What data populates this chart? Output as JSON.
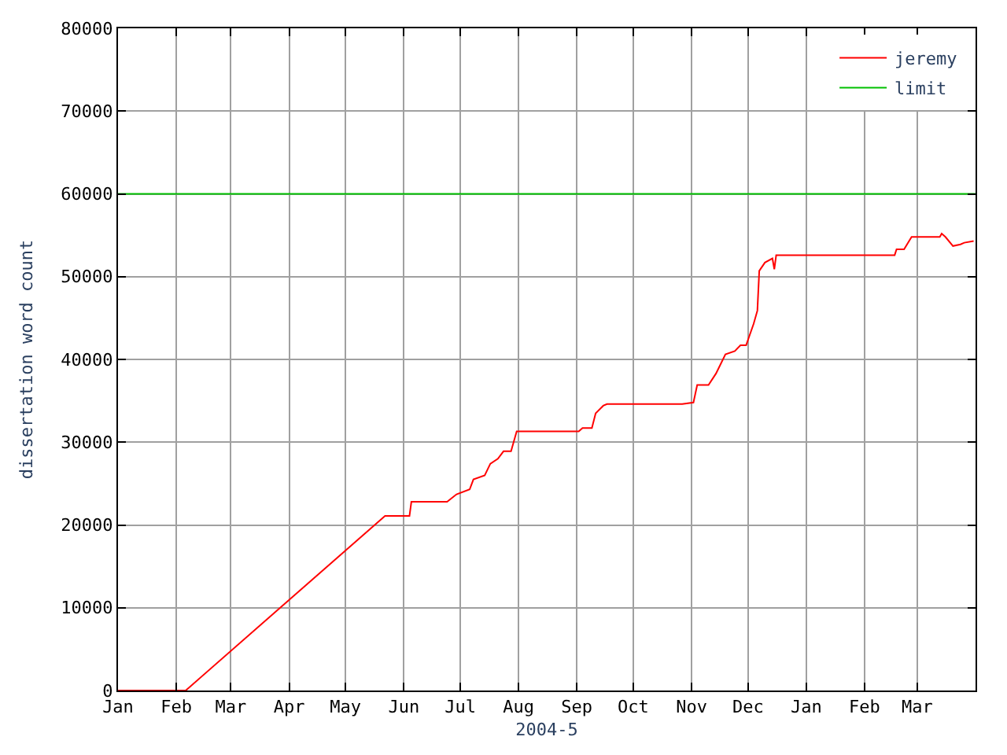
{
  "chart_data": {
    "type": "line",
    "xlabel": "2004-5",
    "ylabel": "dissertation word count",
    "xlim": [
      "2004-01-01",
      "2005-04-01"
    ],
    "xticks": [
      {
        "value": "2004-01-01",
        "label": "Jan"
      },
      {
        "value": "2004-02-01",
        "label": "Feb"
      },
      {
        "value": "2004-03-01",
        "label": "Mar"
      },
      {
        "value": "2004-04-01",
        "label": "Apr"
      },
      {
        "value": "2004-05-01",
        "label": "May"
      },
      {
        "value": "2004-06-01",
        "label": "Jun"
      },
      {
        "value": "2004-07-01",
        "label": "Jul"
      },
      {
        "value": "2004-08-01",
        "label": "Aug"
      },
      {
        "value": "2004-09-01",
        "label": "Sep"
      },
      {
        "value": "2004-10-01",
        "label": "Oct"
      },
      {
        "value": "2004-11-01",
        "label": "Nov"
      },
      {
        "value": "2004-12-01",
        "label": "Dec"
      },
      {
        "value": "2005-01-01",
        "label": "Jan"
      },
      {
        "value": "2005-02-01",
        "label": "Feb"
      },
      {
        "value": "2005-03-01",
        "label": "Mar"
      }
    ],
    "ylim": [
      0,
      80000
    ],
    "yticks": [
      0,
      10000,
      20000,
      30000,
      40000,
      50000,
      60000,
      70000,
      80000
    ],
    "grid": true,
    "legend": "top right",
    "marker": "none",
    "line_style": "solid",
    "series": [
      {
        "name": "jeremy",
        "color": "#ff0000",
        "x": [
          "2004-01-01",
          "2004-02-06",
          "2004-05-22",
          "2004-06-04",
          "2004-06-05",
          "2004-06-24",
          "2004-06-29",
          "2004-07-06",
          "2004-07-08",
          "2004-07-14",
          "2004-07-17",
          "2004-07-21",
          "2004-07-24",
          "2004-07-28",
          "2004-07-31",
          "2004-09-02",
          "2004-09-04",
          "2004-09-09",
          "2004-09-11",
          "2004-09-15",
          "2004-09-17",
          "2004-10-27",
          "2004-11-02",
          "2004-11-04",
          "2004-11-10",
          "2004-11-14",
          "2004-11-19",
          "2004-11-24",
          "2004-11-27",
          "2004-11-30",
          "2004-12-04",
          "2004-12-06",
          "2004-12-07",
          "2004-12-10",
          "2004-12-14",
          "2004-12-15",
          "2004-12-16",
          "2005-02-17",
          "2005-02-18",
          "2005-02-22",
          "2005-02-26",
          "2005-03-13",
          "2005-03-14",
          "2005-03-16",
          "2005-03-20",
          "2005-03-24",
          "2005-03-26",
          "2005-03-31"
        ],
        "values": [
          0,
          0,
          21100,
          21100,
          22800,
          22800,
          23700,
          24300,
          25500,
          26000,
          27400,
          28000,
          28900,
          28900,
          31300,
          31300,
          31700,
          31700,
          33500,
          34400,
          34600,
          34600,
          34800,
          36900,
          36900,
          38300,
          40600,
          41000,
          41700,
          41700,
          44300,
          45900,
          50700,
          51700,
          52200,
          50900,
          52600,
          52600,
          53300,
          53300,
          54800,
          54800,
          55200,
          54800,
          53700,
          53900,
          54100,
          54300
        ]
      },
      {
        "name": "limit",
        "color": "#00c000",
        "x": [
          "2004-01-01",
          "2005-04-01"
        ],
        "values": [
          60000,
          60000
        ]
      }
    ]
  }
}
